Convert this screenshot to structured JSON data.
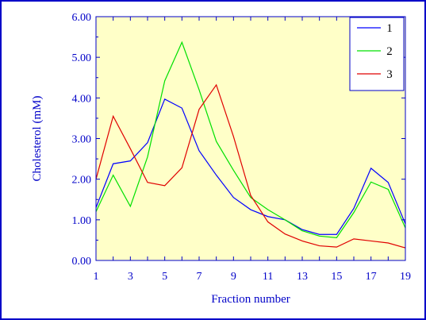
{
  "chart_data": {
    "type": "line",
    "title": "",
    "xlabel": "Fraction number",
    "ylabel": "Cholesterol (mM)",
    "x": [
      1,
      2,
      3,
      4,
      5,
      6,
      7,
      8,
      9,
      10,
      11,
      12,
      13,
      14,
      15,
      16,
      17,
      18,
      19
    ],
    "xlim": [
      1,
      19
    ],
    "ylim": [
      0,
      6
    ],
    "xticks": [
      "1",
      "3",
      "5",
      "7",
      "9",
      "11",
      "13",
      "15",
      "17",
      "19"
    ],
    "yticks": [
      "0.00",
      "1.00",
      "2.00",
      "3.00",
      "4.00",
      "5.00",
      "6.00"
    ],
    "legend_position": "top-right",
    "plot_background": "#ffffc8",
    "axis_color": "#0000c8",
    "series": [
      {
        "name": "1",
        "color": "#0000ff",
        "values": [
          1.3,
          2.38,
          2.45,
          2.9,
          3.97,
          3.75,
          2.7,
          2.1,
          1.55,
          1.25,
          1.08,
          1.0,
          0.76,
          0.64,
          0.64,
          1.28,
          2.27,
          1.92,
          0.9
        ]
      },
      {
        "name": "2",
        "color": "#00e000",
        "values": [
          1.2,
          2.1,
          1.33,
          2.55,
          4.42,
          5.37,
          4.2,
          2.93,
          2.22,
          1.55,
          1.25,
          1.0,
          0.73,
          0.6,
          0.56,
          1.18,
          1.93,
          1.75,
          0.8
        ]
      },
      {
        "name": "3",
        "color": "#e00000",
        "values": [
          2.0,
          3.55,
          2.75,
          1.92,
          1.84,
          2.28,
          3.72,
          4.32,
          3.05,
          1.6,
          0.95,
          0.65,
          0.48,
          0.36,
          0.33,
          0.53,
          0.48,
          0.43,
          0.31
        ]
      }
    ]
  }
}
